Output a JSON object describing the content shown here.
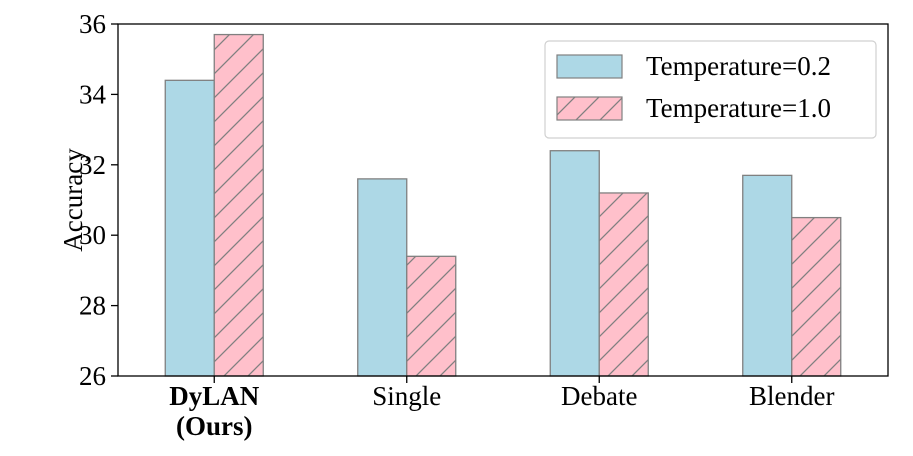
{
  "chart_data": {
    "type": "bar",
    "categories": [
      "DyLAN\n(Ours)",
      "Single",
      "Debate",
      "Blender"
    ],
    "bold_categories": [
      0
    ],
    "series": [
      {
        "name": "Temperature=0.2",
        "values": [
          34.4,
          31.6,
          32.4,
          31.7
        ],
        "color": "#add8e6",
        "hatch": false
      },
      {
        "name": "Temperature=1.0",
        "values": [
          35.7,
          29.4,
          31.2,
          30.5
        ],
        "color": "#ffc0cb",
        "hatch": true
      }
    ],
    "ylabel": "Accuracy",
    "xlabel": "",
    "title": "",
    "ylim": [
      26,
      36
    ],
    "yticks": [
      26,
      28,
      30,
      32,
      34,
      36
    ],
    "legend_position": "top-right",
    "grid": false,
    "edge_color": "#808080",
    "hatch_color": "#808080"
  }
}
